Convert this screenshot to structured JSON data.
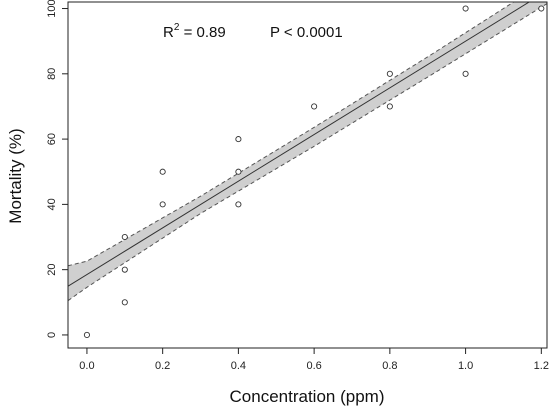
{
  "chart_data": {
    "type": "scatter",
    "xlabel": "Concentration (ppm)",
    "ylabel": "Mortality  (%)",
    "xlim": [
      -0.05,
      1.215
    ],
    "ylim": [
      -4,
      102
    ],
    "x_ticks": [
      0.0,
      0.2,
      0.4,
      0.6,
      0.8,
      1.0,
      1.2
    ],
    "x_tick_labels": [
      "0.0",
      "0.2",
      "0.4",
      "0.6",
      "0.8",
      "1.0",
      "1.2"
    ],
    "y_ticks": [
      0,
      20,
      40,
      60,
      80,
      100
    ],
    "y_tick_labels": [
      "0",
      "20",
      "40",
      "60",
      "80",
      "100"
    ],
    "grid": false,
    "points": [
      {
        "x": 0.0,
        "y": 0
      },
      {
        "x": 0.1,
        "y": 10
      },
      {
        "x": 0.1,
        "y": 20
      },
      {
        "x": 0.1,
        "y": 30
      },
      {
        "x": 0.2,
        "y": 40
      },
      {
        "x": 0.2,
        "y": 50
      },
      {
        "x": 0.4,
        "y": 40
      },
      {
        "x": 0.4,
        "y": 50
      },
      {
        "x": 0.4,
        "y": 60
      },
      {
        "x": 0.6,
        "y": 70
      },
      {
        "x": 0.8,
        "y": 70
      },
      {
        "x": 0.8,
        "y": 80
      },
      {
        "x": 1.0,
        "y": 80
      },
      {
        "x": 1.0,
        "y": 100
      },
      {
        "x": 1.2,
        "y": 100
      }
    ],
    "regression": {
      "intercept": 18.5,
      "slope": 71.5,
      "x_range": [
        -0.05,
        1.215
      ],
      "confidence_band": [
        {
          "x": -0.05,
          "lower": 10.5,
          "upper": 21.2
        },
        {
          "x": 0.0,
          "lower": 14.6,
          "upper": 22.6
        },
        {
          "x": 0.3,
          "lower": 37.2,
          "upper": 42.5
        },
        {
          "x": 0.6,
          "lower": 57.8,
          "upper": 63.6
        },
        {
          "x": 0.9,
          "lower": 79.0,
          "upper": 85.2
        },
        {
          "x": 1.215,
          "lower": 101.5,
          "upper": 108.5
        }
      ]
    },
    "annotations": {
      "r_squared": {
        "prefix": "R",
        "sup": "2",
        "suffix": " = 0.89"
      },
      "p_value": "P < 0.0001"
    },
    "colors": {
      "band_fill": "#cfcfcf",
      "band_border": "#555555",
      "line": "#333333",
      "marker": "#333333",
      "axis": "#222222"
    }
  }
}
